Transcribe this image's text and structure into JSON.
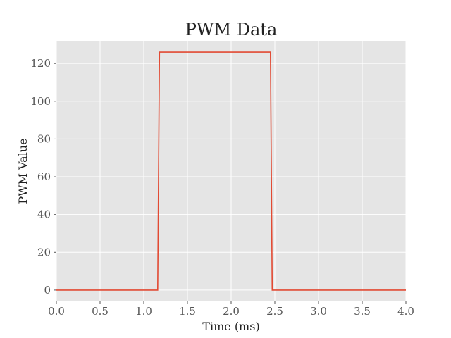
{
  "chart_data": {
    "type": "line",
    "title": "PWM Data",
    "xlabel": "Time (ms)",
    "ylabel": "PWM Value",
    "xlim": [
      0.0,
      4.0
    ],
    "ylim": [
      -6,
      132
    ],
    "xticks": [
      0.0,
      0.5,
      1.0,
      1.5,
      2.0,
      2.5,
      3.0,
      3.5,
      4.0
    ],
    "xtick_labels": [
      "0.0",
      "0.5",
      "1.0",
      "1.5",
      "2.0",
      "2.5",
      "3.0",
      "3.5",
      "4.0"
    ],
    "yticks": [
      0,
      20,
      40,
      60,
      80,
      100,
      120
    ],
    "ytick_labels": [
      "0",
      "20",
      "40",
      "60",
      "80",
      "100",
      "120"
    ],
    "grid": true,
    "background_color": "#e5e5e5",
    "grid_color": "#ffffff",
    "series": [
      {
        "color": "#e24a33",
        "x": [
          0.0,
          1.16,
          1.18,
          2.45,
          2.47,
          4.0
        ],
        "y": [
          0,
          0,
          126,
          126,
          0,
          0
        ]
      }
    ]
  }
}
